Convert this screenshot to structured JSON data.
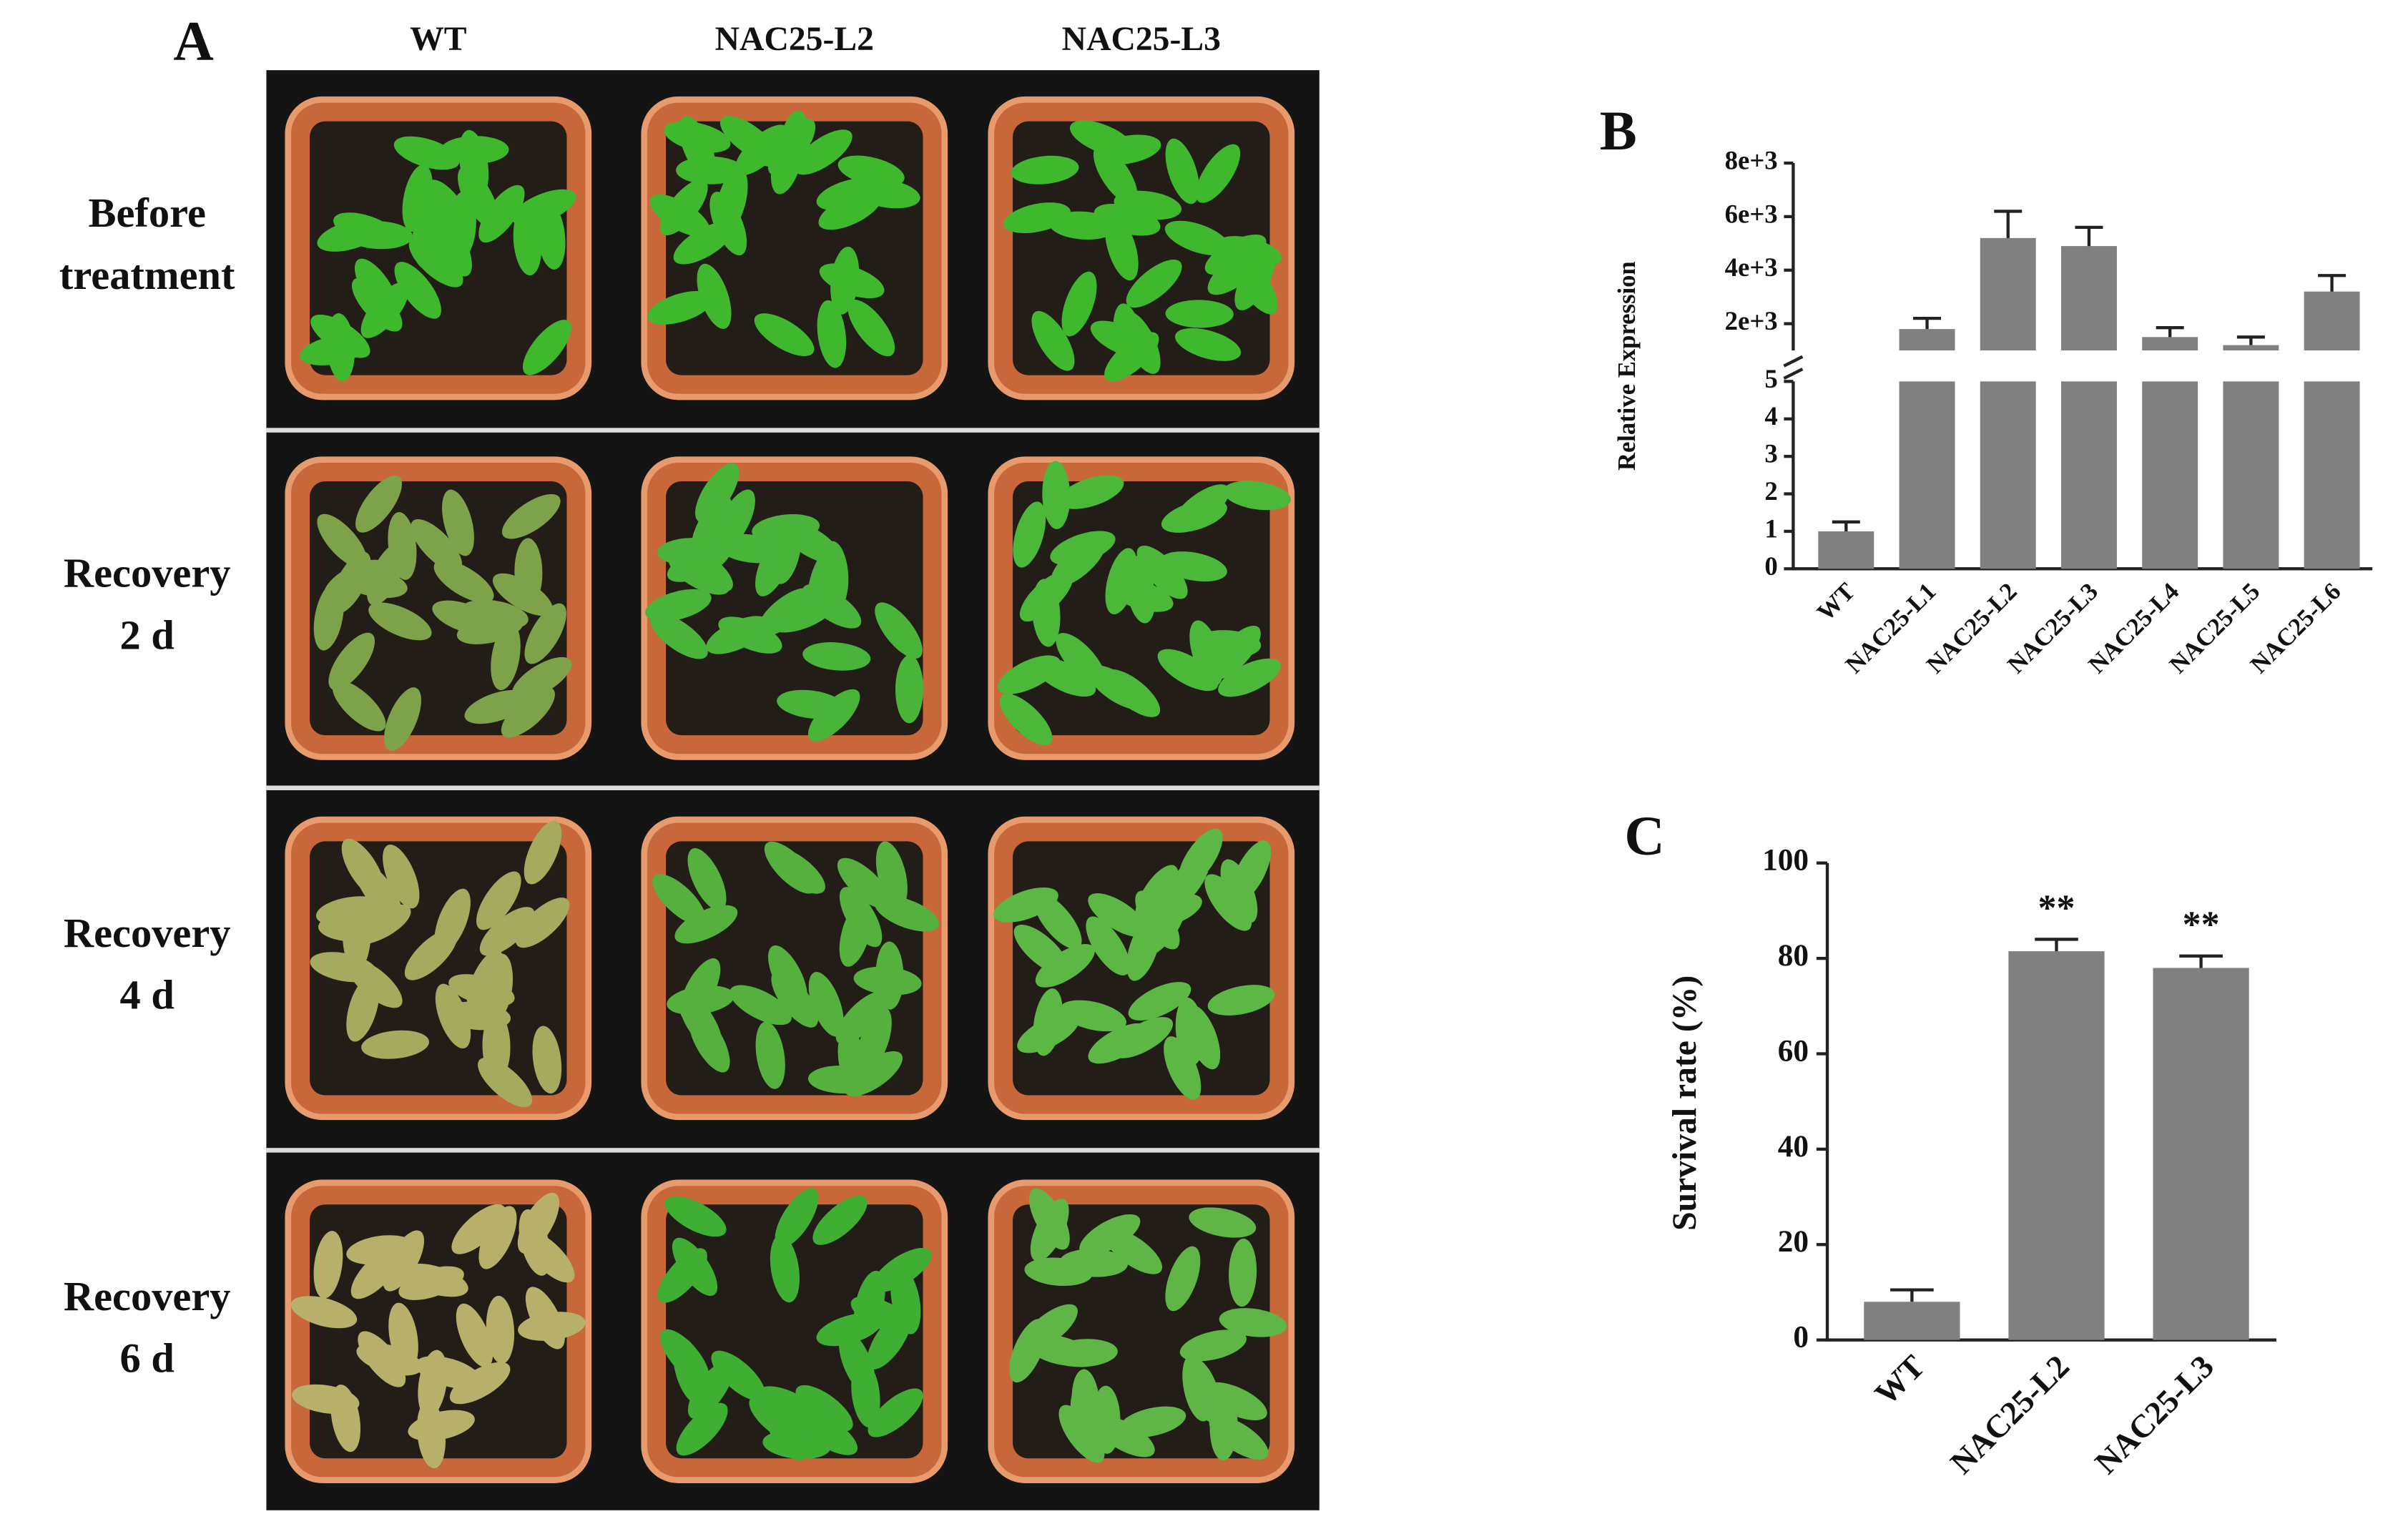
{
  "panel_a": {
    "panel_label": "A",
    "columns": [
      "WT",
      "NAC25-L2",
      "NAC25-L3"
    ],
    "rows": [
      [
        "Before",
        "treatment"
      ],
      [
        "Recovery",
        "2 d"
      ],
      [
        "Recovery",
        "4 d"
      ],
      [
        "Recovery",
        "6 d"
      ]
    ]
  },
  "chart_data": [
    {
      "type": "broken_bar",
      "panel_label": "B",
      "y_label": "Relative Expression",
      "categories": [
        "WT",
        "NAC25-L1",
        "NAC25-L2",
        "NAC25-L3",
        "NAC25-L4",
        "NAC25-L5",
        "NAC25-L6"
      ],
      "values": [
        1,
        1800,
        5200,
        4900,
        1500,
        1200,
        3200
      ],
      "errors": [
        0.25,
        400,
        1000,
        700,
        350,
        300,
        600
      ],
      "color": "#808080",
      "ylim_lower": [
        0,
        5
      ],
      "yticks_lower": [
        0,
        1,
        2,
        3,
        4,
        5
      ],
      "ylim_upper": [
        1000,
        8000
      ],
      "yticks_upper": [
        {
          "value": 2000,
          "label": "2e+3"
        },
        {
          "value": 4000,
          "label": "4e+3"
        },
        {
          "value": 6000,
          "label": "6e+3"
        },
        {
          "value": 8000,
          "label": "8e+3"
        }
      ]
    },
    {
      "type": "bar",
      "panel_label": "C",
      "y_label": "Survival rate   (%)",
      "categories": [
        "WT",
        "NAC25-L2",
        "NAC25-L3"
      ],
      "values": [
        8,
        81.5,
        78
      ],
      "errors": [
        2.5,
        2.5,
        2.5
      ],
      "annotations": [
        null,
        "**",
        "**"
      ],
      "color": "#808080",
      "ylim": [
        0,
        100
      ],
      "yticks": [
        0,
        20,
        40,
        60,
        80,
        100
      ]
    }
  ]
}
